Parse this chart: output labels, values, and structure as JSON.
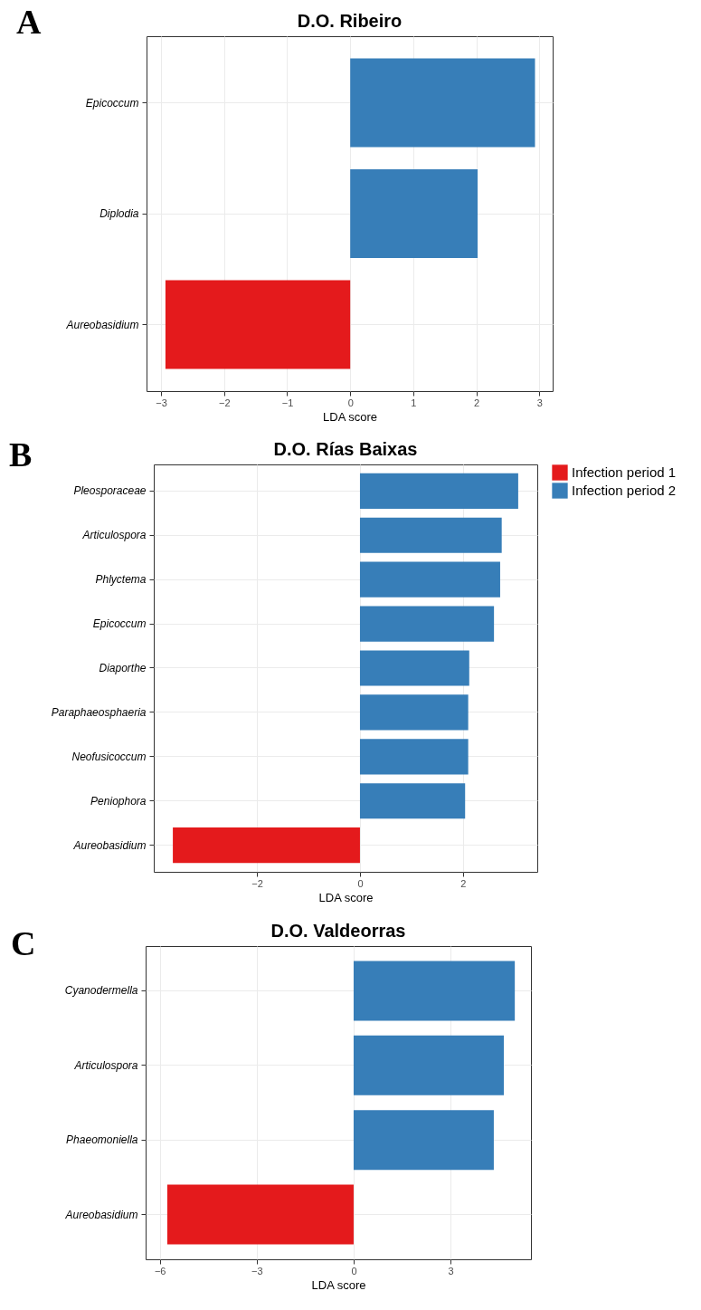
{
  "chart_data": [
    {
      "type": "bar",
      "orientation": "horizontal",
      "title": "D.O. Ribeiro",
      "xlabel": "LDA score",
      "annotations": [
        "A"
      ],
      "categories": [
        "Epicoccum",
        "Diplodia",
        "Aureobasidium"
      ],
      "series": [
        {
          "color": "#e41a1c",
          "values": [
            null,
            null,
            -2.93
          ]
        },
        {
          "color": "#377eb8",
          "values": [
            2.93,
            2.02,
            null
          ]
        }
      ],
      "xlim": [
        -3.23,
        3.21
      ],
      "xticks": [
        -3,
        -2,
        -1,
        0,
        1,
        2,
        3
      ],
      "grid": true,
      "legend": false
    },
    {
      "type": "bar",
      "orientation": "horizontal",
      "title": "D.O. Rías Baixas",
      "xlabel": "LDA score",
      "annotations": [
        "B"
      ],
      "categories": [
        "Pleosporaceae",
        "Articulospora",
        "Phlyctema",
        "Epicoccum",
        "Diaporthe",
        "Paraphaeosphaeria",
        "Neofusicoccum",
        "Peniophora",
        "Aureobasidium"
      ],
      "series": [
        {
          "name": "Infection period 1",
          "color": "#e41a1c",
          "values": [
            null,
            null,
            null,
            null,
            null,
            null,
            null,
            null,
            -3.63
          ]
        },
        {
          "name": "Infection period 2",
          "color": "#377eb8",
          "values": [
            3.07,
            2.75,
            2.72,
            2.6,
            2.12,
            2.1,
            2.1,
            2.04,
            null
          ]
        }
      ],
      "xlim": [
        -4.0,
        3.44
      ],
      "xticks": [
        -2,
        0,
        2
      ],
      "grid": true,
      "legend": "right"
    },
    {
      "type": "bar",
      "orientation": "horizontal",
      "title": "D.O. Valdeorras",
      "xlabel": "LDA score",
      "annotations": [
        "C"
      ],
      "categories": [
        "Cyanodermella",
        "Articulospora",
        "Phaeomoniella",
        "Aureobasidium"
      ],
      "series": [
        {
          "color": "#e41a1c",
          "values": [
            null,
            null,
            null,
            -5.77
          ]
        },
        {
          "color": "#377eb8",
          "values": [
            4.99,
            4.65,
            4.34,
            null
          ]
        }
      ],
      "xlim": [
        -6.44,
        5.49
      ],
      "xticks": [
        -6,
        -3,
        0,
        3
      ],
      "grid": true,
      "legend": false
    }
  ]
}
